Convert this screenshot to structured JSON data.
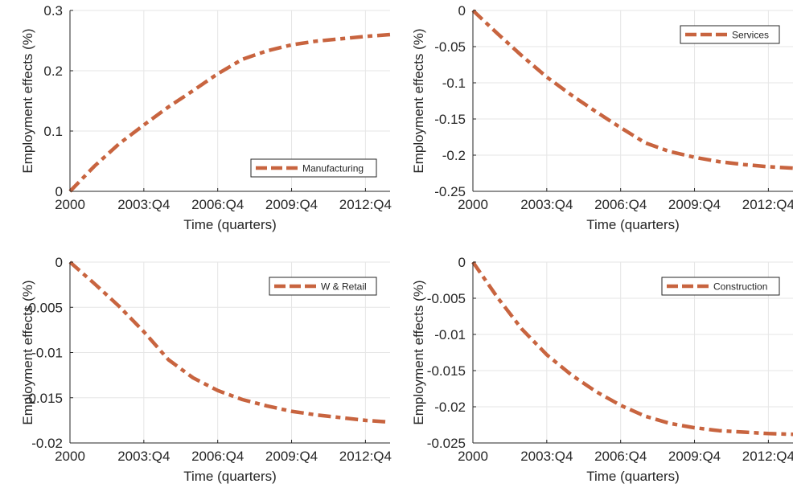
{
  "chart_data": [
    {
      "type": "line",
      "xlabel": "Time (quarters)",
      "ylabel": "Employment effects (%)",
      "x_tick_labels": [
        "2000",
        "2003:Q4",
        "2006:Q4",
        "2009:Q4",
        "2012:Q4"
      ],
      "x_tick_positions": [
        1,
        13,
        25,
        37,
        49
      ],
      "xlim": [
        1,
        53
      ],
      "ylim": [
        0,
        0.3
      ],
      "y_tick_labels": [
        "0",
        "0.1",
        "0.2",
        "0.3"
      ],
      "y_ticks": [
        0,
        0.1,
        0.2,
        0.3
      ],
      "grid": true,
      "legend_position": "lower-right",
      "series": [
        {
          "name": "Manufacturing",
          "color": "#c8643f",
          "x": [
            1,
            5,
            9,
            13,
            17,
            21,
            25,
            29,
            33,
            37,
            41,
            45,
            49,
            53
          ],
          "y": [
            0,
            0.042,
            0.079,
            0.11,
            0.14,
            0.167,
            0.195,
            0.219,
            0.233,
            0.243,
            0.249,
            0.253,
            0.257,
            0.26
          ]
        }
      ]
    },
    {
      "type": "line",
      "xlabel": "Time (quarters)",
      "ylabel": "Employment effects (%)",
      "x_tick_labels": [
        "2000",
        "2003:Q4",
        "2006:Q4",
        "2009:Q4",
        "2012:Q4"
      ],
      "x_tick_positions": [
        1,
        13,
        25,
        37,
        49
      ],
      "xlim": [
        1,
        53
      ],
      "ylim": [
        -0.25,
        0
      ],
      "y_tick_labels": [
        "-0.25",
        "-0.2",
        "-0.15",
        "-0.1",
        "-0.05",
        "0"
      ],
      "y_ticks": [
        -0.25,
        -0.2,
        -0.15,
        -0.1,
        -0.05,
        0
      ],
      "grid": true,
      "legend_position": "top-right",
      "series": [
        {
          "name": "Services",
          "color": "#c8643f",
          "x": [
            1,
            5,
            9,
            13,
            17,
            21,
            25,
            29,
            33,
            37,
            41,
            45,
            49,
            53
          ],
          "y": [
            0,
            -0.032,
            -0.063,
            -0.092,
            -0.117,
            -0.14,
            -0.162,
            -0.183,
            -0.195,
            -0.203,
            -0.209,
            -0.213,
            -0.216,
            -0.218
          ]
        }
      ]
    },
    {
      "type": "line",
      "xlabel": "Time (quarters)",
      "ylabel": "Employment effects (%)",
      "x_tick_labels": [
        "2000",
        "2003:Q4",
        "2006:Q4",
        "2009:Q4",
        "2012:Q4"
      ],
      "x_tick_positions": [
        1,
        13,
        25,
        37,
        49
      ],
      "xlim": [
        1,
        53
      ],
      "ylim": [
        -0.02,
        0
      ],
      "y_tick_labels": [
        "-0.02",
        "-0.015",
        "-0.01",
        "-0.005",
        "0"
      ],
      "y_ticks": [
        -0.02,
        -0.015,
        -0.01,
        -0.005,
        0
      ],
      "grid": true,
      "legend_position": "top-right",
      "series": [
        {
          "name": "W & Retail",
          "color": "#c8643f",
          "x": [
            1,
            5,
            9,
            13,
            17,
            21,
            25,
            29,
            33,
            37,
            41,
            45,
            49,
            53
          ],
          "y": [
            0,
            -0.0024,
            -0.0049,
            -0.0077,
            -0.0108,
            -0.0128,
            -0.0142,
            -0.0152,
            -0.0159,
            -0.0165,
            -0.0169,
            -0.0172,
            -0.0175,
            -0.0177
          ]
        }
      ]
    },
    {
      "type": "line",
      "xlabel": "Time (quarters)",
      "ylabel": "Employment effects (%)",
      "x_tick_labels": [
        "2000",
        "2003:Q4",
        "2006:Q4",
        "2009:Q4",
        "2012:Q4"
      ],
      "x_tick_positions": [
        1,
        13,
        25,
        37,
        49
      ],
      "xlim": [
        1,
        53
      ],
      "ylim": [
        -0.025,
        0
      ],
      "y_tick_labels": [
        "-0.025",
        "-0.02",
        "-0.015",
        "-0.01",
        "-0.005",
        "0"
      ],
      "y_ticks": [
        -0.025,
        -0.02,
        -0.015,
        -0.01,
        -0.005,
        0
      ],
      "grid": true,
      "legend_position": "top-right",
      "series": [
        {
          "name": "Construction",
          "color": "#c8643f",
          "x": [
            1,
            5,
            9,
            13,
            17,
            21,
            25,
            29,
            33,
            37,
            41,
            45,
            49,
            53
          ],
          "y": [
            0,
            -0.0049,
            -0.0093,
            -0.0128,
            -0.0156,
            -0.0179,
            -0.0198,
            -0.0213,
            -0.0223,
            -0.0229,
            -0.0233,
            -0.0235,
            -0.0237,
            -0.0238
          ]
        }
      ]
    }
  ]
}
